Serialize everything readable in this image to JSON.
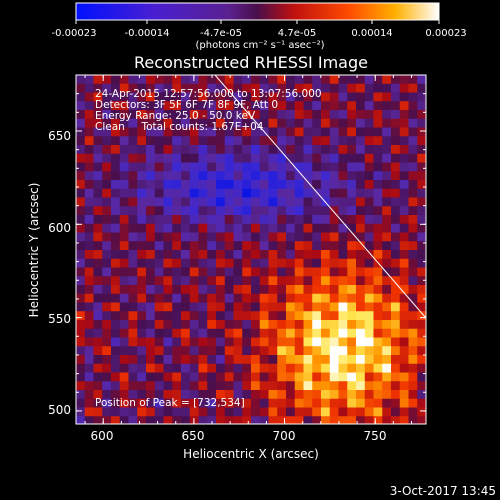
{
  "colorbar": {
    "ticks": [
      "-0.00023",
      "-0.00014",
      "-4.7e-05",
      "4.7e-05",
      "0.00014",
      "0.00023"
    ],
    "units_label": "(photons cm⁻² s⁻¹ asec⁻²)",
    "range": [
      -0.00023,
      0.00023
    ]
  },
  "plot": {
    "title": "Reconstructed RHESSI Image",
    "xlabel": "Heliocentric X (arcsec)",
    "ylabel": "Heliocentric Y (arcsec)",
    "xticks": [
      "600",
      "650",
      "700",
      "750"
    ],
    "yticks": [
      "500",
      "550",
      "600",
      "650"
    ],
    "info_lines": [
      "24-Apr-2015 12:57:56.000 to 13:07:56.000",
      "Detectors: 3F 5F 6F 7F 8F 9F, Att 0",
      "Energy Range: 25.0 - 50.0 keV",
      "Clean     Total counts: 1.67E+04"
    ],
    "peak_label": "Position of Peak = [732,534]"
  },
  "footer": {
    "timestamp": "3-Oct-2017 13:45"
  },
  "chart_data": {
    "type": "heatmap",
    "title": "Reconstructed RHESSI Image",
    "xlabel": "Heliocentric X (arcsec)",
    "ylabel": "Heliocentric Y (arcsec)",
    "xlim": [
      585,
      778
    ],
    "ylim": [
      493,
      680
    ],
    "xticks": [
      600,
      650,
      700,
      750
    ],
    "yticks": [
      500,
      550,
      600,
      650
    ],
    "peak": [
      732,
      534
    ],
    "colormap": "blue-purple-red-yellow-white",
    "value_range": [
      -0.00023,
      0.00023
    ]
  }
}
